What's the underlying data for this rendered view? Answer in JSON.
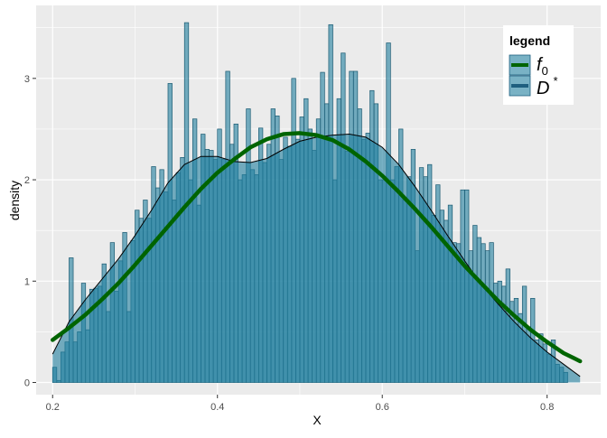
{
  "chart_data": {
    "type": "histogram",
    "xlabel": "X",
    "ylabel": "density",
    "xlim": [
      0.18,
      0.865
    ],
    "ylim": [
      -0.12,
      3.72
    ],
    "x_ticks": [
      0.2,
      0.4,
      0.6,
      0.8
    ],
    "x_tick_labels": [
      "0.2",
      "0.4",
      "0.6",
      "0.8"
    ],
    "y_ticks": [
      0,
      1,
      2,
      3
    ],
    "y_tick_labels": [
      "0",
      "1",
      "2",
      "3"
    ],
    "grid": true,
    "legend": {
      "title": "legend",
      "position": "top-right",
      "entries": [
        {
          "label": "f",
          "subscript": "0",
          "superscript": "",
          "color": "#006400",
          "kind": "line"
        },
        {
          "label": "D",
          "subscript": "",
          "superscript": "*",
          "color": "#1f7f9f",
          "kind": "fill"
        }
      ]
    },
    "histogram": {
      "name": "D*",
      "bin_start": 0.2,
      "bin_width": 0.005,
      "fill": "#1f7f9f",
      "values": [
        0.15,
        0.02,
        0.3,
        0.4,
        1.23,
        0.4,
        0.5,
        0.98,
        0.52,
        0.92,
        0.93,
        0.95,
        1.17,
        0.7,
        1.38,
        0.9,
        1.2,
        1.48,
        0.7,
        1.4,
        1.7,
        1.62,
        1.8,
        1.62,
        2.13,
        1.92,
        2.1,
        1.88,
        2.95,
        1.8,
        2.07,
        2.22,
        3.55,
        2.0,
        2.6,
        1.75,
        2.45,
        2.3,
        2.29,
        2.2,
        2.5,
        2.2,
        3.07,
        2.35,
        2.55,
        2.0,
        2.05,
        2.7,
        2.1,
        2.05,
        2.51,
        2.17,
        2.35,
        2.7,
        2.63,
        2.2,
        2.42,
        2.33,
        3.0,
        2.4,
        2.62,
        2.8,
        2.5,
        2.29,
        2.6,
        3.06,
        2.75,
        3.53,
        2.0,
        2.8,
        3.25,
        2.28,
        3.07,
        3.07,
        2.7,
        2.4,
        2.46,
        2.88,
        2.75,
        2.0,
        2.0,
        3.35,
        2.0,
        2.13,
        2.5,
        1.8,
        2.03,
        2.3,
        1.3,
        2.12,
        2.03,
        2.15,
        1.65,
        1.95,
        1.7,
        1.6,
        1.75,
        1.38,
        1.37,
        1.9,
        1.9,
        1.3,
        1.55,
        1.43,
        1.37,
        1.3,
        1.38,
        0.98,
        1.0,
        0.95,
        1.12,
        0.8,
        0.83,
        0.68,
        0.95,
        0.55,
        0.83,
        0.42,
        0.48,
        0.38,
        0.28,
        0.42,
        0.18,
        0.15,
        0.1
      ]
    },
    "density": {
      "name": "D*",
      "line_color": "#000000",
      "fill": "#1f7f9f",
      "x": [
        0.2,
        0.22,
        0.24,
        0.26,
        0.28,
        0.3,
        0.32,
        0.34,
        0.36,
        0.38,
        0.4,
        0.42,
        0.44,
        0.46,
        0.48,
        0.5,
        0.52,
        0.54,
        0.56,
        0.58,
        0.6,
        0.62,
        0.64,
        0.66,
        0.68,
        0.7,
        0.72,
        0.74,
        0.76,
        0.78,
        0.8,
        0.82,
        0.84
      ],
      "y": [
        0.28,
        0.6,
        0.82,
        1.02,
        1.22,
        1.45,
        1.7,
        1.97,
        2.15,
        2.23,
        2.23,
        2.18,
        2.17,
        2.21,
        2.3,
        2.38,
        2.42,
        2.44,
        2.45,
        2.42,
        2.32,
        2.15,
        1.93,
        1.69,
        1.44,
        1.2,
        0.97,
        0.78,
        0.6,
        0.44,
        0.3,
        0.18,
        0.06
      ]
    },
    "f0": {
      "name": "f0",
      "color": "#006400",
      "x": [
        0.2,
        0.22,
        0.24,
        0.26,
        0.28,
        0.3,
        0.32,
        0.34,
        0.36,
        0.38,
        0.4,
        0.42,
        0.44,
        0.46,
        0.48,
        0.5,
        0.52,
        0.54,
        0.56,
        0.58,
        0.6,
        0.62,
        0.64,
        0.66,
        0.68,
        0.7,
        0.72,
        0.74,
        0.76,
        0.78,
        0.8,
        0.82,
        0.84
      ],
      "y": [
        0.42,
        0.54,
        0.67,
        0.82,
        0.98,
        1.16,
        1.35,
        1.54,
        1.73,
        1.91,
        2.07,
        2.2,
        2.32,
        2.4,
        2.45,
        2.46,
        2.44,
        2.39,
        2.3,
        2.18,
        2.04,
        1.88,
        1.71,
        1.53,
        1.34,
        1.15,
        0.98,
        0.81,
        0.66,
        0.52,
        0.4,
        0.29,
        0.21
      ]
    }
  }
}
